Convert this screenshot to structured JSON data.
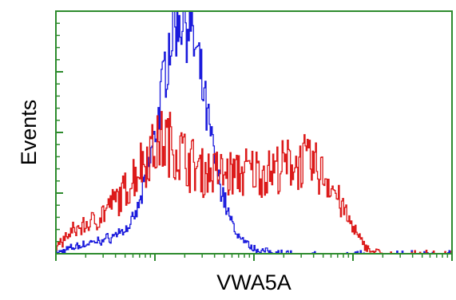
{
  "chart_data": {
    "type": "line",
    "title": "",
    "xlabel": "VWA5A",
    "ylabel": "Events",
    "x_scale": "log",
    "x_decades": 4,
    "ylim": [
      0,
      100
    ],
    "grid": false,
    "legend": "none",
    "colors": {
      "axis": "#2e8b2e",
      "blue_series": "#1a1adc",
      "red_series": "#dc1a1a"
    },
    "series": [
      {
        "color": "#1a1adc",
        "x": [
          0.0,
          0.06,
          0.12,
          0.2,
          0.3,
          0.4,
          0.5,
          0.6,
          0.7,
          0.75,
          0.8,
          0.85,
          0.9,
          0.95,
          1.0,
          1.05,
          1.1,
          1.15,
          1.2,
          1.25,
          1.3,
          1.35,
          1.4,
          1.45,
          1.5,
          1.55,
          1.6,
          1.65,
          1.7,
          1.75,
          1.8,
          1.85,
          1.9,
          1.95,
          2.0,
          2.05,
          2.1,
          2.2,
          2.3,
          2.4,
          2.5,
          2.7,
          2.9,
          3.2,
          3.5,
          3.8,
          4.0
        ],
        "y": [
          0.0,
          1.0,
          2.0,
          3.0,
          4.0,
          5.0,
          6.0,
          8.0,
          10.0,
          12.0,
          16.0,
          22.0,
          30.0,
          40.0,
          50.0,
          62.0,
          78.0,
          90.0,
          98.0,
          100.0,
          100.0,
          95.0,
          85.0,
          75.0,
          62.0,
          50.0,
          40.0,
          30.0,
          22.0,
          15.0,
          10.0,
          7.0,
          5.0,
          3.0,
          2.0,
          1.5,
          1.0,
          0.5,
          0.2,
          0.0,
          0.0,
          0.0,
          0.0,
          0.0,
          0.0,
          0.0,
          0.0
        ]
      },
      {
        "color": "#dc1a1a",
        "x": [
          0.0,
          0.06,
          0.12,
          0.2,
          0.3,
          0.4,
          0.5,
          0.6,
          0.7,
          0.8,
          0.9,
          1.0,
          1.1,
          1.2,
          1.3,
          1.4,
          1.5,
          1.6,
          1.7,
          1.8,
          1.9,
          2.0,
          2.1,
          2.2,
          2.3,
          2.4,
          2.5,
          2.6,
          2.7,
          2.8,
          2.9,
          3.0,
          3.1,
          3.2,
          3.3,
          3.4,
          3.5,
          3.6,
          3.7,
          3.8,
          3.9,
          4.0
        ],
        "y": [
          3.0,
          5.0,
          8.0,
          10.0,
          12.0,
          14.0,
          18.0,
          22.0,
          26.0,
          34.0,
          40.0,
          45.0,
          47.0,
          44.0,
          40.0,
          36.0,
          34.0,
          34.0,
          33.0,
          33.0,
          34.0,
          34.0,
          34.0,
          35.0,
          36.0,
          38.0,
          38.0,
          36.0,
          33.0,
          27.0,
          18.0,
          10.0,
          4.0,
          1.0,
          0.0,
          0.0,
          0.0,
          0.0,
          0.0,
          0.0,
          0.0,
          0.0
        ]
      }
    ]
  }
}
